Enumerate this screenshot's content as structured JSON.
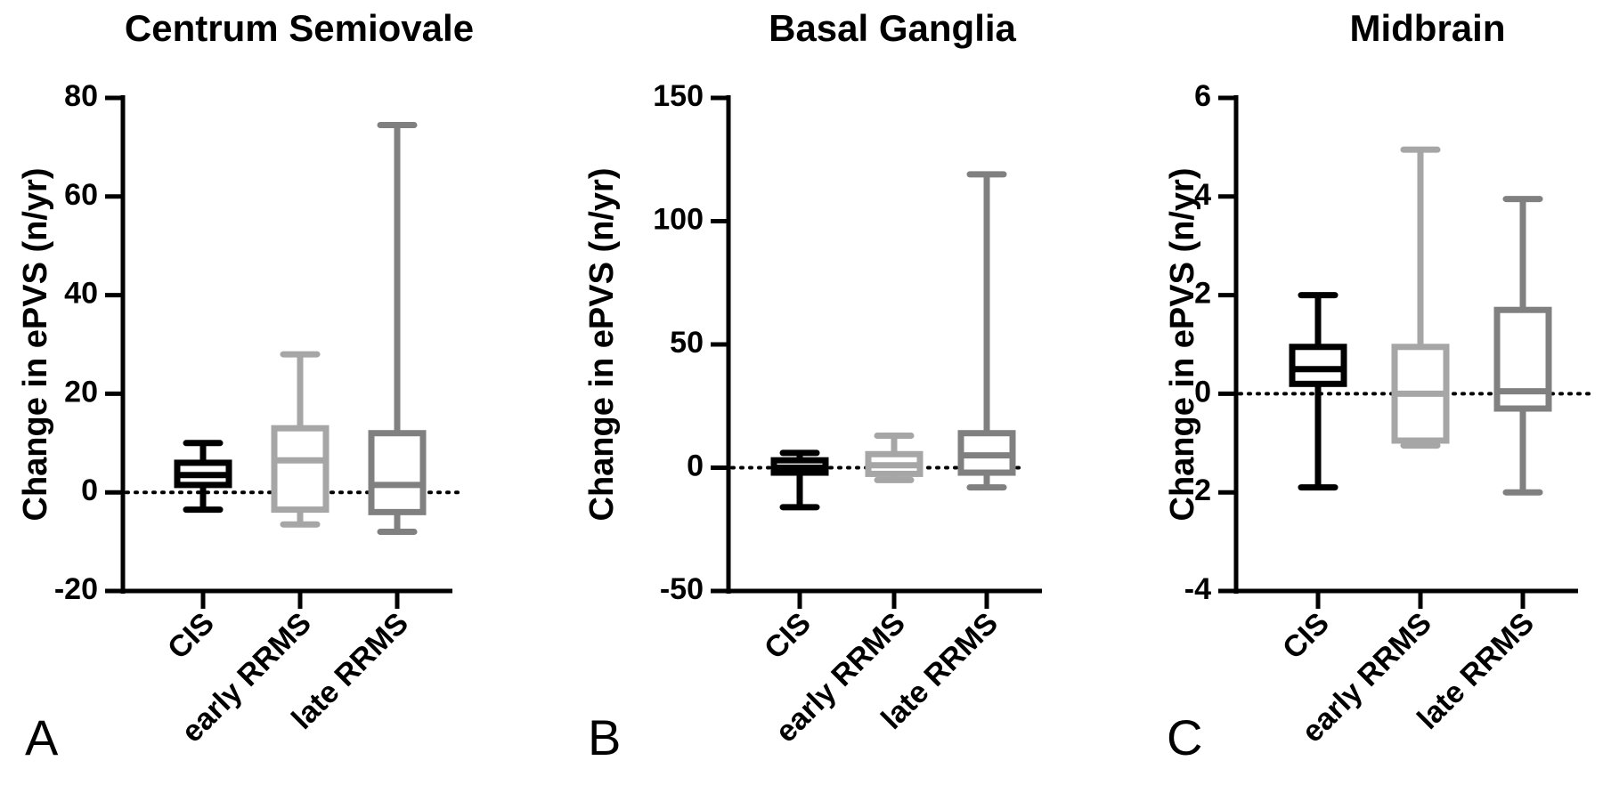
{
  "figure": {
    "colors": {
      "axis": "#000000",
      "CIS": "#000000",
      "early RRMS": "#a6a6a6",
      "late RRMS": "#808080"
    }
  },
  "chart_data": [
    {
      "type": "box",
      "panel_label": "A",
      "title": "Centrum Semiovale",
      "ylabel": "Change in ePVS (n/yr)",
      "ylim": [
        -20,
        80
      ],
      "yticks": [
        -20,
        0,
        20,
        40,
        60,
        80
      ],
      "ytick_labels": [
        "-20",
        "0",
        "20",
        "40",
        "60",
        "80"
      ],
      "reference_line": 0,
      "categories": [
        "CIS",
        "early RRMS",
        "late RRMS"
      ],
      "boxes": [
        {
          "name": "CIS",
          "min": -3.5,
          "q1": 1.5,
          "median": 3.5,
          "q3": 6,
          "max": 10
        },
        {
          "name": "early RRMS",
          "min": -6.5,
          "q1": -3.5,
          "median": 6.5,
          "q3": 13,
          "max": 28
        },
        {
          "name": "late RRMS",
          "min": -8,
          "q1": -4,
          "median": 1.5,
          "q3": 12,
          "max": 74.5
        }
      ]
    },
    {
      "type": "box",
      "panel_label": "B",
      "title": "Basal Ganglia",
      "ylabel": "Change in ePVS (n/yr)",
      "ylim": [
        -50,
        150
      ],
      "yticks": [
        -50,
        0,
        50,
        100,
        150
      ],
      "ytick_labels": [
        "-50",
        "0",
        "50",
        "100",
        "150"
      ],
      "reference_line": 0,
      "categories": [
        "CIS",
        "early RRMS",
        "late RRMS"
      ],
      "boxes": [
        {
          "name": "CIS",
          "min": -16,
          "q1": -2,
          "median": 0,
          "q3": 3,
          "max": 6
        },
        {
          "name": "early RRMS",
          "min": -5,
          "q1": -2.5,
          "median": 1,
          "q3": 5.5,
          "max": 13
        },
        {
          "name": "late RRMS",
          "min": -8,
          "q1": -2,
          "median": 5,
          "q3": 14,
          "max": 119
        }
      ]
    },
    {
      "type": "box",
      "panel_label": "C",
      "title": "Midbrain",
      "ylabel": "Change in ePVS (n/yr)",
      "ylim": [
        -4,
        6
      ],
      "yticks": [
        -4,
        -2,
        0,
        2,
        4,
        6
      ],
      "ytick_labels": [
        "-4",
        "-2",
        "0",
        "2",
        "4",
        "6"
      ],
      "reference_line": 0,
      "categories": [
        "CIS",
        "early RRMS",
        "late RRMS"
      ],
      "boxes": [
        {
          "name": "CIS",
          "min": -1.9,
          "q1": 0.2,
          "median": 0.5,
          "q3": 0.95,
          "max": 2
        },
        {
          "name": "early RRMS",
          "min": -1.05,
          "q1": -0.95,
          "median": 0,
          "q3": 0.95,
          "max": 4.95
        },
        {
          "name": "late RRMS",
          "min": -2,
          "q1": -0.3,
          "median": 0.05,
          "q3": 1.7,
          "max": 3.95
        }
      ]
    }
  ]
}
